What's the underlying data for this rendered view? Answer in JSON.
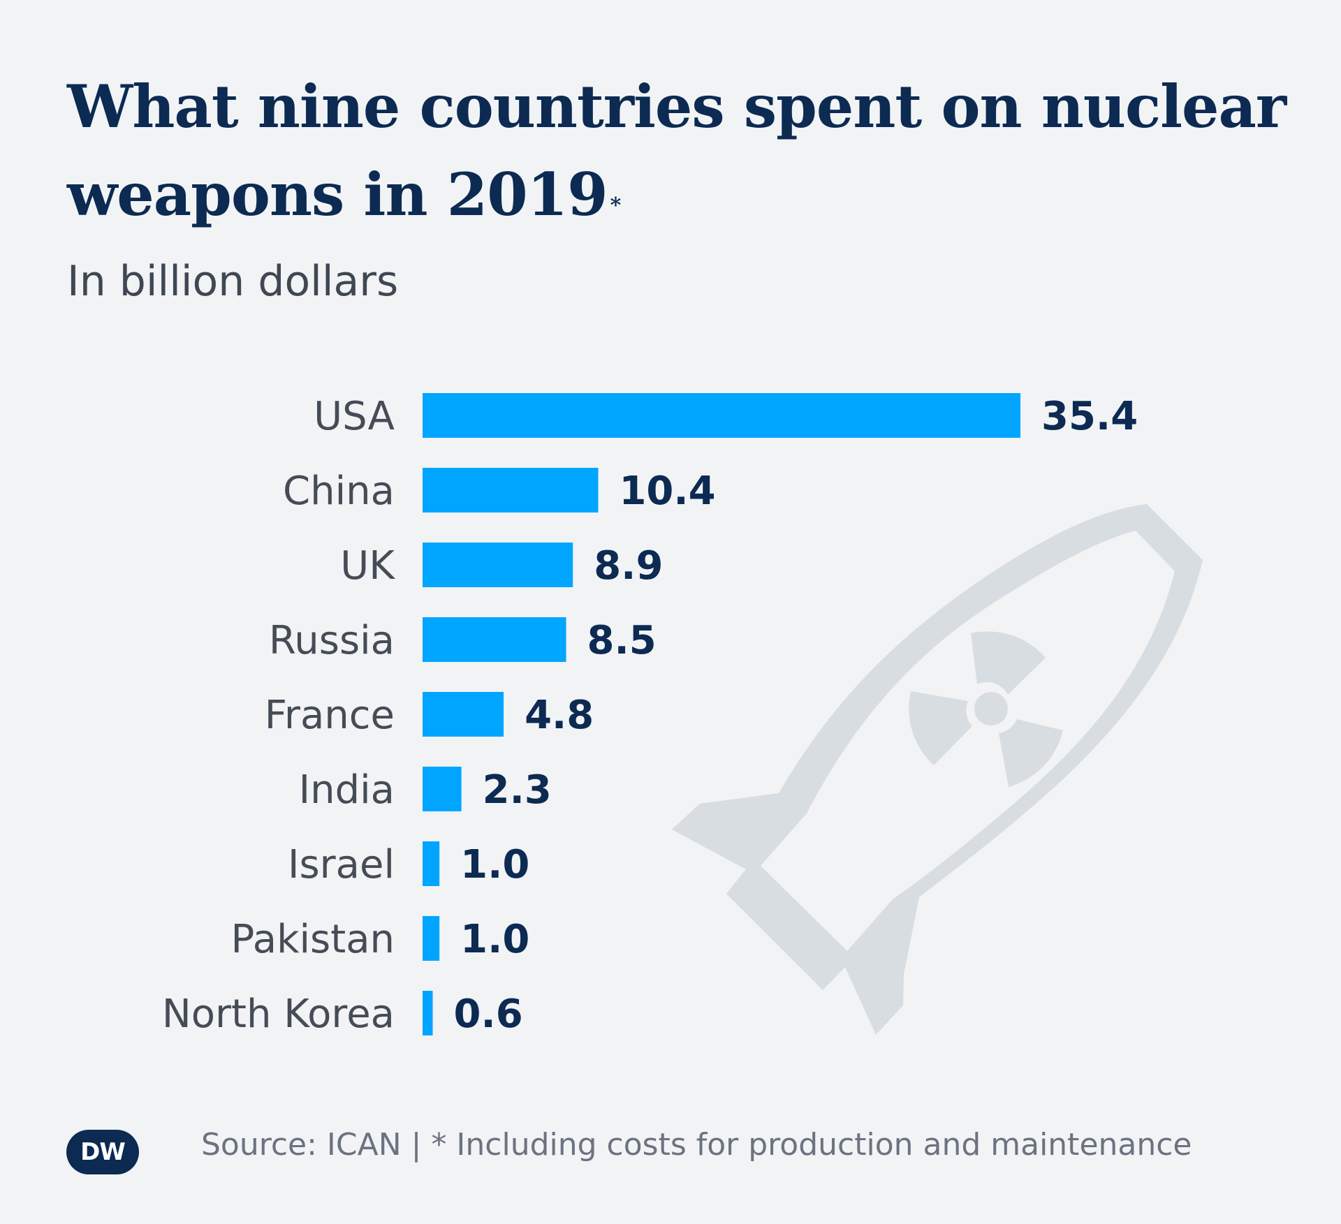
{
  "title": "What nine countries spent on nuclear weapons in 2019",
  "title_marker": "*",
  "subtitle": "In billion dollars",
  "source": "Source: ICAN | * Including costs for production and maintenance",
  "logo": {
    "text": "DW"
  },
  "illustration": {
    "icon": "nuclear-bomb-icon",
    "color": "#d8dde2"
  },
  "colors": {
    "bar": "#00a5ff",
    "title": "#0c2a52",
    "background": "#f1f3f5"
  },
  "chart_data": {
    "type": "bar",
    "orientation": "horizontal",
    "categories": [
      "USA",
      "China",
      "UK",
      "Russia",
      "France",
      "India",
      "Israel",
      "Pakistan",
      "North Korea"
    ],
    "values": [
      35.4,
      10.4,
      8.9,
      8.5,
      4.8,
      2.3,
      1.0,
      1.0,
      0.6
    ],
    "value_labels": [
      "35.4",
      "10.4",
      "8.9",
      "8.5",
      "4.8",
      "2.3",
      "1.0",
      "1.0",
      "0.6"
    ],
    "title": "What nine countries spent on nuclear weapons in 2019",
    "xlabel": "",
    "ylabel": "",
    "unit": "In billion dollars",
    "xlim": [
      0,
      35.4
    ],
    "grid": false,
    "legend": "none"
  }
}
